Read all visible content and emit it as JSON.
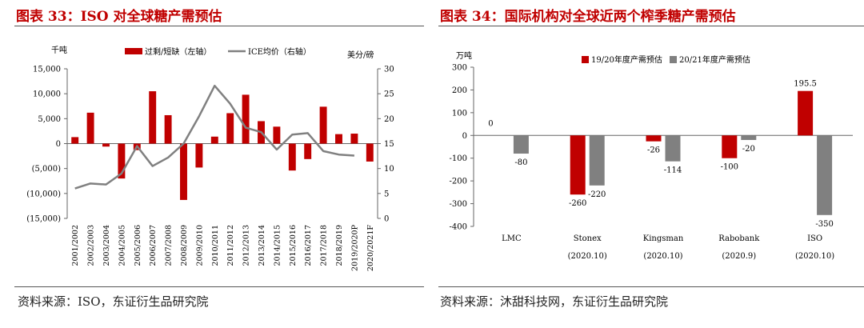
{
  "left": {
    "title": "图表 33：ISO 对全球糖产需预估",
    "source": "资料来源：ISO，东证衍生品研究院",
    "chart_data": {
      "type": "bar+line",
      "y_left_unit": "千吨",
      "y_right_unit": "美分/磅",
      "y_left_ticks": [
        "15,000",
        "10,000",
        "5,000",
        "0",
        "(5,000)",
        "(10,000)",
        "(15,000)"
      ],
      "y_left_tick_values": [
        15000,
        10000,
        5000,
        0,
        -5000,
        -10000,
        -15000
      ],
      "y_right_ticks": [
        "30",
        "25",
        "20",
        "15",
        "10",
        "5",
        "0"
      ],
      "y_right_tick_values": [
        30,
        25,
        20,
        15,
        10,
        5,
        0
      ],
      "ylim_left": [
        -15000,
        15000
      ],
      "ylim_right": [
        0,
        30
      ],
      "categories": [
        "2001/2002",
        "2002/2003",
        "2003/2004",
        "2004/2005",
        "2005/2006",
        "2006/2007",
        "2007/2008",
        "2008/2009",
        "2009/2010",
        "2010/2011",
        "2011/2012",
        "2012/2013",
        "2013/2014",
        "2014/2015",
        "2015/2016",
        "2016/2017",
        "2017/2018",
        "2018/2019",
        "2019/2020P",
        "2020/2021F"
      ],
      "series": [
        {
          "name": "过剩/短缺（左轴）",
          "type": "bar",
          "axis": "left",
          "color": "#c00000",
          "values": [
            1300,
            6200,
            -600,
            -7000,
            -1300,
            10500,
            5700,
            -11300,
            -4800,
            1400,
            6100,
            9800,
            4500,
            3400,
            -5400,
            -3100,
            7400,
            1900,
            2000,
            -3600
          ]
        },
        {
          "name": "ICE均价（右轴）",
          "type": "line",
          "axis": "right",
          "color": "#808080",
          "values": [
            6.0,
            7.0,
            6.8,
            9.0,
            14.5,
            10.5,
            12.2,
            15.0,
            20.5,
            26.6,
            23.0,
            18.2,
            17.3,
            13.8,
            16.8,
            17.1,
            13.5,
            12.8,
            12.6,
            null
          ]
        }
      ]
    }
  },
  "right": {
    "title": "图表 34：国际机构对全球近两个榨季糖产需预估",
    "source": "资料来源：沐甜科技网，东证衍生品研究院",
    "chart_data": {
      "type": "bar",
      "y_unit": "万吨",
      "y_ticks": [
        "300",
        "200",
        "100",
        "0",
        "-100",
        "-200",
        "-300",
        "-400"
      ],
      "y_tick_values": [
        300,
        200,
        100,
        0,
        -100,
        -200,
        -300,
        -400
      ],
      "ylim": [
        -400,
        300
      ],
      "categories": [
        "LMC",
        "Stonex",
        "Kingsman",
        "Rabobank",
        "ISO"
      ],
      "category_sublabels": [
        "",
        "(2020.10)",
        "(2020.10)",
        "(2020.9)",
        "(2020.10)"
      ],
      "series": [
        {
          "name": "19/20年度产需预估",
          "color": "#c00000",
          "values": [
            0,
            -260,
            -26,
            -100,
            195.5
          ],
          "labels": [
            "0",
            "-260",
            "-26",
            "-100",
            "195.5"
          ]
        },
        {
          "name": "20/21年度产需预估",
          "color": "#808080",
          "values": [
            -80,
            -220,
            -114,
            -20,
            -350
          ],
          "labels": [
            "-80",
            "-220",
            "-114",
            "-20",
            "-350"
          ]
        }
      ]
    }
  }
}
